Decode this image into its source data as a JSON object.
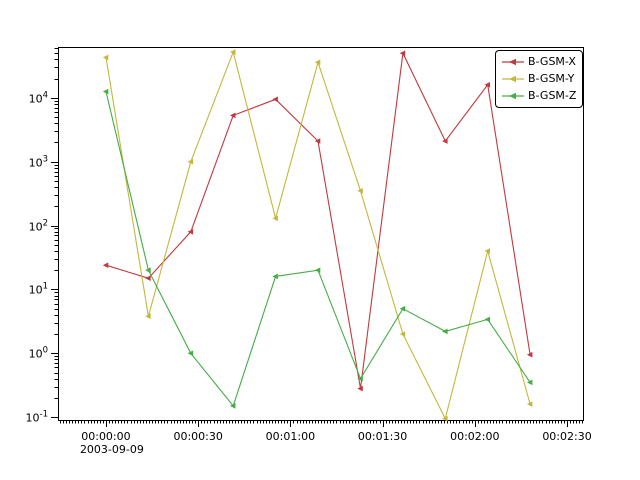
{
  "chart_data": {
    "type": "line",
    "title": "",
    "x_axis": {
      "date": "2003-09-09",
      "xlim_seconds": [
        -15.6,
        155.2
      ],
      "major_tick_interval_seconds": 30,
      "minor_tick_interval_seconds": 1,
      "ticks": [
        {
          "t": 0,
          "label": "00:00:00",
          "sublabel": "2003-09-09"
        },
        {
          "t": 30,
          "label": "00:00:30"
        },
        {
          "t": 60,
          "label": "00:01:00"
        },
        {
          "t": 90,
          "label": "00:01:30"
        },
        {
          "t": 120,
          "label": "00:02:00"
        },
        {
          "t": 150,
          "label": "00:02:30"
        }
      ]
    },
    "y_axis": {
      "scale": "log",
      "ylim": [
        0.0903,
        62500
      ],
      "tick_exponents": [
        -1,
        0,
        1,
        2,
        3,
        4
      ]
    },
    "x_seconds": [
      0,
      13.8,
      27.6,
      41.4,
      55.2,
      69,
      82.8,
      96.6,
      110.4,
      124.2,
      138
    ],
    "series": [
      {
        "name": "B-GSM-X",
        "color": "#bf3a3e",
        "values": [
          24,
          15,
          80,
          5300,
          9500,
          2100,
          0.28,
          50000,
          2100,
          16000,
          0.95
        ]
      },
      {
        "name": "B-GSM-Y",
        "color": "#c3b83d",
        "values": [
          43000,
          3.8,
          1000,
          52000,
          130,
          36000,
          350,
          2.0,
          0.095,
          40,
          0.16
        ]
      },
      {
        "name": "B-GSM-Z",
        "color": "#44ad44",
        "values": [
          12500,
          20,
          1.0,
          0.15,
          16,
          20,
          0.4,
          5.0,
          2.2,
          3.4,
          0.35
        ]
      }
    ],
    "legend": {
      "position": "upper-right",
      "entries": [
        "B-GSM-X",
        "B-GSM-Y",
        "B-GSM-Z"
      ]
    },
    "grid": false,
    "marker": "triangle-left"
  }
}
